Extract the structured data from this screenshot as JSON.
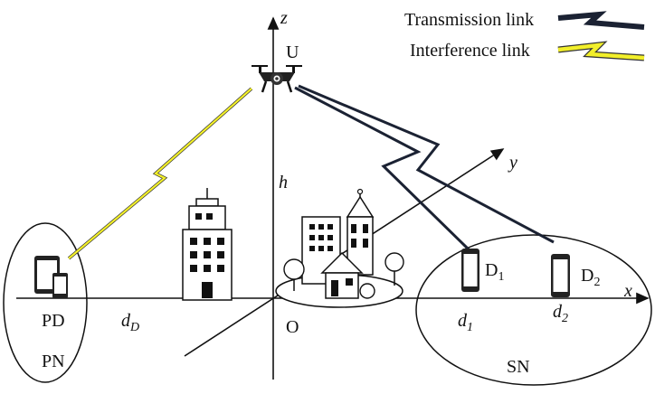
{
  "legend": {
    "transmission_label": "Transmission link",
    "interference_label": "Interference link"
  },
  "axes": {
    "x_label": "x",
    "y_label": "y",
    "z_label": "z",
    "origin_label": "O"
  },
  "labels": {
    "uav": "U",
    "height": "h",
    "primary_device": "PD",
    "primary_network": "PN",
    "distance_d": "d",
    "distance_d_sub": "D",
    "device1": "D",
    "device1_sub": "1",
    "device2": "D",
    "device2_sub": "2",
    "dist1": "d",
    "dist1_sub": "1",
    "dist2": "d",
    "dist2_sub": "2",
    "secondary_network": "SN"
  },
  "colors": {
    "transmission": "#1b2233",
    "interference": "#f2ef2a",
    "ink": "#111111"
  },
  "icons": [
    "drone-icon",
    "office-building-icon",
    "town-icon",
    "tablet-phone-icon",
    "smartphone-icon"
  ]
}
